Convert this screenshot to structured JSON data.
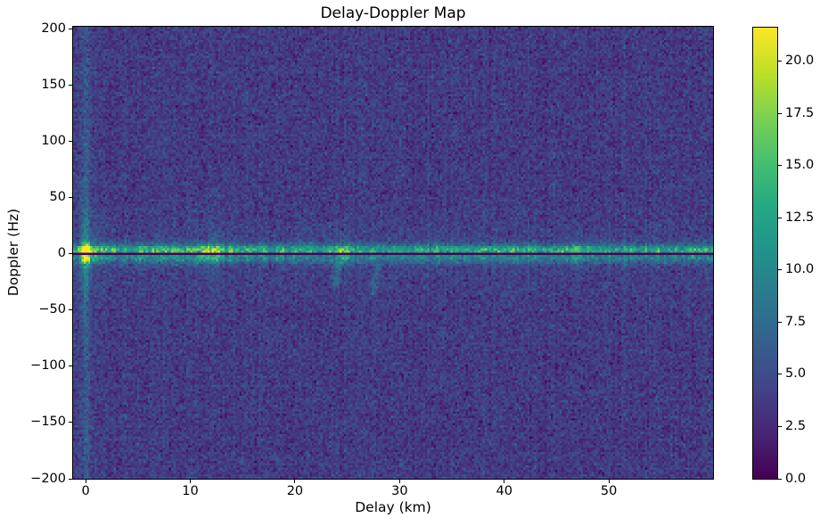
{
  "figure": {
    "background_color": "#ffffff",
    "text_color": "#000000"
  },
  "chart_data": {
    "type": "heatmap",
    "title": "Delay-Doppler Map",
    "xlabel": "Delay (km)",
    "ylabel": "Doppler (Hz)",
    "xlim": [
      -1.2,
      59.95
    ],
    "ylim": [
      -200,
      202
    ],
    "grid": false,
    "x_ticks": {
      "values": [
        0,
        10,
        20,
        30,
        40,
        50
      ],
      "labels": [
        "0",
        "10",
        "20",
        "30",
        "40",
        "50"
      ]
    },
    "y_ticks": {
      "values": [
        200,
        150,
        100,
        50,
        0,
        -50,
        -100,
        -150,
        -200
      ],
      "labels": [
        "200",
        "150",
        "100",
        "50",
        "0",
        "−50",
        "−100",
        "−150",
        "−200"
      ]
    },
    "colormap": "viridis",
    "colormap_stops": [
      "#440154",
      "#482475",
      "#414487",
      "#355f8d",
      "#2a788e",
      "#21918c",
      "#22a884",
      "#44bf70",
      "#7ad151",
      "#bddf26",
      "#fde725"
    ],
    "colorbar": {
      "vmin": 0.0,
      "vmax": 21.6,
      "tick_values": [
        0.0,
        2.5,
        5.0,
        7.5,
        10.0,
        12.5,
        15.0,
        17.5,
        20.0
      ],
      "tick_labels": [
        "0.0",
        "2.5",
        "5.0",
        "7.5",
        "10.0",
        "12.5",
        "15.0",
        "17.5",
        "20.0"
      ]
    },
    "grid_bins": {
      "nx": 300,
      "ny": 202
    },
    "noise": {
      "mean": 3.7,
      "std": 1.05,
      "seed": 42
    },
    "zero_doppler_dark_line": {
      "half_width_hz": 1.0,
      "value": 0.2
    },
    "direct_path_stripe": {
      "delay_km": 0,
      "amp": 3.4,
      "broad_amp": 0.9
    },
    "ridge": {
      "base_amp": 7.5,
      "base_decay_amp": 3.0,
      "base_decay_km": 8,
      "peaks": [
        [
          0,
          13.5,
          0.3
        ],
        [
          0.8,
          3,
          0.5
        ],
        [
          2,
          2,
          0.5
        ],
        [
          5.3,
          2.5,
          0.4
        ],
        [
          7,
          3,
          0.5
        ],
        [
          8.6,
          3.5,
          0.4
        ],
        [
          10,
          4,
          0.5
        ],
        [
          11.4,
          5.5,
          0.5
        ],
        [
          12.6,
          5.5,
          0.5
        ],
        [
          14,
          3.5,
          0.4
        ],
        [
          15.6,
          3,
          0.5
        ],
        [
          17,
          2.5,
          0.4
        ],
        [
          18.6,
          2.5,
          0.4
        ],
        [
          20.2,
          2.5,
          0.5
        ],
        [
          21.6,
          2.5,
          0.4
        ],
        [
          23.2,
          3,
          0.4
        ],
        [
          24.6,
          6.5,
          0.45
        ],
        [
          26,
          2.5,
          0.4
        ],
        [
          27.4,
          2,
          0.4
        ],
        [
          29,
          2,
          0.5
        ],
        [
          30.6,
          2.5,
          0.5
        ],
        [
          32,
          3,
          0.5
        ],
        [
          33.6,
          2.5,
          0.4
        ],
        [
          35,
          3,
          0.5
        ],
        [
          36.4,
          2.5,
          0.4
        ],
        [
          38,
          2,
          0.5
        ],
        [
          39.6,
          2.5,
          0.5
        ],
        [
          41,
          3,
          0.5
        ],
        [
          42.6,
          2.5,
          0.4
        ],
        [
          44,
          2.5,
          0.5
        ],
        [
          45.4,
          2.5,
          0.5
        ],
        [
          46.8,
          4.5,
          0.5
        ],
        [
          48.4,
          2.5,
          0.5
        ],
        [
          50,
          2,
          0.5
        ],
        [
          51.6,
          2.5,
          0.5
        ],
        [
          53.2,
          2,
          0.5
        ],
        [
          54.8,
          2.5,
          0.5
        ],
        [
          56.4,
          2.5,
          0.5
        ],
        [
          58,
          2.5,
          0.5
        ],
        [
          59.4,
          2.5,
          0.5
        ]
      ]
    },
    "streaks": [
      {
        "delay": 24.2,
        "doppler_from": -28,
        "doppler_to": -6,
        "slope": 0.012,
        "amp": 3.2,
        "width": 0.25
      },
      {
        "delay": 28.0,
        "doppler_from": -36,
        "doppler_to": -9,
        "slope": 0.018,
        "amp": 2.6,
        "width": 0.28
      }
    ]
  }
}
